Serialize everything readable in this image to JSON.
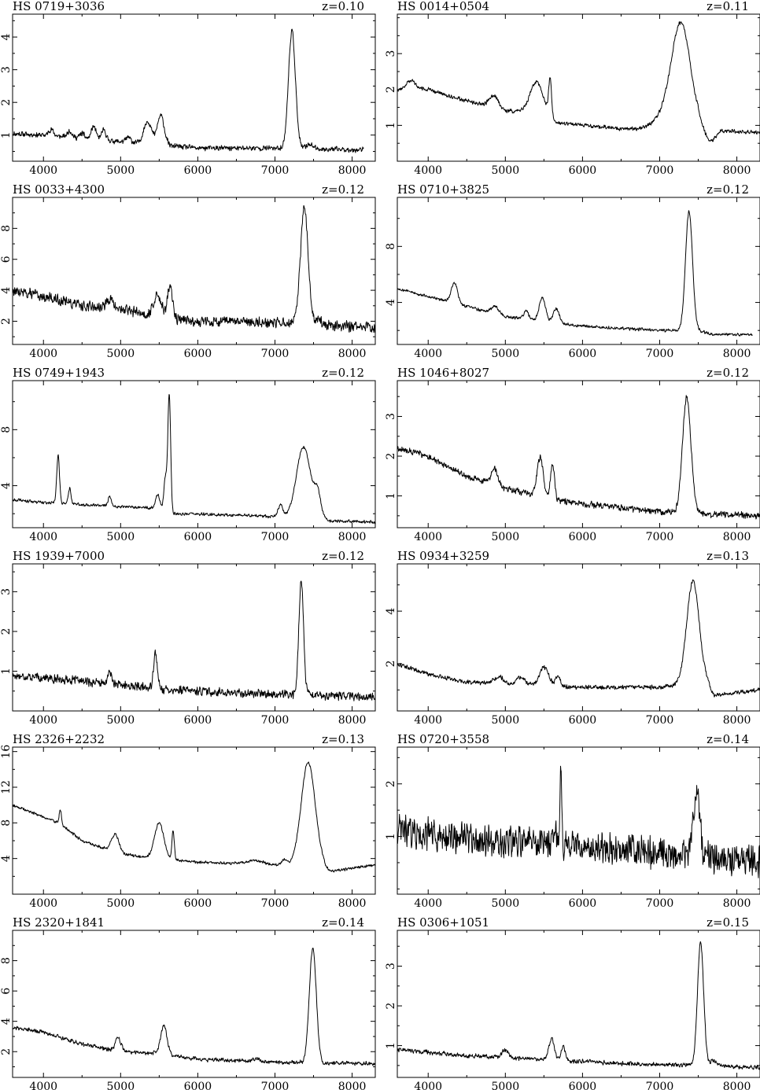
{
  "chart_data": [
    {
      "type": "line",
      "title": "HS 0719+3036",
      "redshift": "z=0.10",
      "xlim": [
        3600,
        8300
      ],
      "ylim": [
        0.2,
        4.7
      ],
      "xticks": [
        4000,
        5000,
        6000,
        7000,
        8000
      ],
      "yticks": [
        1,
        2,
        3,
        4
      ],
      "x_end": 8150,
      "continuum": [
        [
          3600,
          1.05
        ],
        [
          4000,
          1.0
        ],
        [
          5000,
          0.8
        ],
        [
          6000,
          0.6
        ],
        [
          7000,
          0.6
        ],
        [
          8150,
          0.55
        ]
      ],
      "lines": [
        [
          4100,
          0.2,
          30
        ],
        [
          4340,
          0.2,
          30
        ],
        [
          4500,
          0.15,
          30
        ],
        [
          4650,
          0.4,
          30
        ],
        [
          4780,
          0.3,
          30
        ],
        [
          5100,
          0.15,
          30
        ],
        [
          5350,
          0.7,
          50
        ],
        [
          5520,
          0.9,
          45
        ],
        [
          7220,
          3.6,
          45
        ],
        [
          7450,
          0.15,
          40
        ]
      ],
      "noise": 0.06,
      "seed": 11
    },
    {
      "type": "line",
      "title": "HS 0014+0504",
      "redshift": "z=0.11",
      "xlim": [
        3600,
        8300
      ],
      "ylim": [
        0.0,
        4.1
      ],
      "xticks": [
        4000,
        5000,
        6000,
        7000,
        8000
      ],
      "yticks": [
        1,
        2,
        3
      ],
      "x_end": 8300,
      "continuum": [
        [
          3600,
          2.0
        ],
        [
          4000,
          2.0
        ],
        [
          4300,
          1.8
        ],
        [
          5000,
          1.4
        ],
        [
          5500,
          1.4
        ],
        [
          5600,
          1.1
        ],
        [
          6500,
          0.9
        ],
        [
          7000,
          0.9
        ],
        [
          7500,
          1.0
        ],
        [
          7650,
          0.5
        ],
        [
          7800,
          0.85
        ],
        [
          8300,
          0.8
        ]
      ],
      "lines": [
        [
          3780,
          0.25,
          60
        ],
        [
          4850,
          0.35,
          60
        ],
        [
          5400,
          0.8,
          80
        ],
        [
          5580,
          1.1,
          20
        ],
        [
          7280,
          2.7,
          120
        ],
        [
          7100,
          0.4,
          150
        ]
      ],
      "noise": 0.04,
      "seed": 12
    },
    {
      "type": "line",
      "title": "HS 0033+4300",
      "redshift": "z=0.12",
      "xlim": [
        3600,
        8300
      ],
      "ylim": [
        0.5,
        10.0
      ],
      "xticks": [
        4000,
        5000,
        6000,
        7000,
        8000
      ],
      "yticks": [
        2,
        4,
        6,
        8
      ],
      "x_end": 8300,
      "continuum": [
        [
          3600,
          4.0
        ],
        [
          4000,
          3.6
        ],
        [
          4500,
          3.0
        ],
        [
          5000,
          2.8
        ],
        [
          5500,
          2.3
        ],
        [
          6000,
          2.0
        ],
        [
          7000,
          1.9
        ],
        [
          8300,
          1.6
        ]
      ],
      "lines": [
        [
          4860,
          0.6,
          40
        ],
        [
          5480,
          1.4,
          50
        ],
        [
          5640,
          2.1,
          30
        ],
        [
          7380,
          7.4,
          50
        ],
        [
          7560,
          0.4,
          40
        ]
      ],
      "noise": 0.25,
      "seed": 13
    },
    {
      "type": "line",
      "title": "HS 0710+3825",
      "redshift": "z=0.12",
      "xlim": [
        3600,
        8300
      ],
      "ylim": [
        1.0,
        11.5
      ],
      "xticks": [
        4000,
        5000,
        6000,
        7000,
        8000
      ],
      "yticks": [
        4,
        8
      ],
      "x_end": 8200,
      "continuum": [
        [
          3600,
          5.0
        ],
        [
          4300,
          4.0
        ],
        [
          5000,
          3.0
        ],
        [
          6000,
          2.3
        ],
        [
          7000,
          2.0
        ],
        [
          7500,
          2.0
        ],
        [
          7700,
          1.7
        ],
        [
          8200,
          1.7
        ]
      ],
      "lines": [
        [
          4340,
          1.5,
          40
        ],
        [
          4870,
          0.5,
          50
        ],
        [
          5270,
          0.6,
          30
        ],
        [
          5480,
          1.7,
          40
        ],
        [
          5660,
          1.0,
          40
        ],
        [
          7380,
          8.5,
          45
        ]
      ],
      "noise": 0.08,
      "seed": 14
    },
    {
      "type": "line",
      "title": "HS 0749+1943",
      "redshift": "z=0.12",
      "xlim": [
        3600,
        8300
      ],
      "ylim": [
        1.0,
        11.5
      ],
      "xticks": [
        4000,
        5000,
        6000,
        7000,
        8000
      ],
      "yticks": [
        4,
        8
      ],
      "x_end": 8300,
      "continuum": [
        [
          3600,
          3.0
        ],
        [
          4000,
          2.8
        ],
        [
          5000,
          2.5
        ],
        [
          5500,
          2.4
        ],
        [
          5700,
          2.0
        ],
        [
          6500,
          1.9
        ],
        [
          7000,
          1.8
        ],
        [
          7600,
          1.8
        ],
        [
          7700,
          1.5
        ],
        [
          8300,
          1.4
        ]
      ],
      "lines": [
        [
          4190,
          3.4,
          18
        ],
        [
          4340,
          1.1,
          18
        ],
        [
          4860,
          0.7,
          22
        ],
        [
          5480,
          1.0,
          25
        ],
        [
          5580,
          2.3,
          20
        ],
        [
          5630,
          8.3,
          18
        ],
        [
          7070,
          0.8,
          30
        ],
        [
          7370,
          5.0,
          90
        ],
        [
          7550,
          1.5,
          40
        ]
      ],
      "noise": 0.08,
      "seed": 15
    },
    {
      "type": "line",
      "title": "HS 1046+8027",
      "redshift": "z=0.12",
      "xlim": [
        3600,
        8300
      ],
      "ylim": [
        0.2,
        3.9
      ],
      "xticks": [
        4000,
        5000,
        6000,
        7000,
        8000
      ],
      "yticks": [
        1,
        2,
        3
      ],
      "x_end": 8300,
      "continuum": [
        [
          3600,
          2.2
        ],
        [
          4000,
          2.0
        ],
        [
          4500,
          1.5
        ],
        [
          5000,
          1.2
        ],
        [
          5500,
          0.95
        ],
        [
          6000,
          0.8
        ],
        [
          7000,
          0.6
        ],
        [
          7500,
          0.55
        ],
        [
          8300,
          0.5
        ]
      ],
      "lines": [
        [
          4860,
          0.4,
          40
        ],
        [
          5450,
          1.0,
          40
        ],
        [
          5610,
          0.9,
          25
        ],
        [
          7350,
          2.9,
          55
        ]
      ],
      "noise": 0.06,
      "seed": 16
    },
    {
      "type": "line",
      "title": "HS 1939+7000",
      "redshift": "z=0.12",
      "xlim": [
        3600,
        8300
      ],
      "ylim": [
        0.0,
        3.7
      ],
      "xticks": [
        4000,
        5000,
        6000,
        7000,
        8000
      ],
      "yticks": [
        1,
        2,
        3
      ],
      "x_end": 8300,
      "continuum": [
        [
          3600,
          0.9
        ],
        [
          4500,
          0.75
        ],
        [
          5500,
          0.55
        ],
        [
          6500,
          0.45
        ],
        [
          7500,
          0.4
        ],
        [
          8300,
          0.35
        ]
      ],
      "lines": [
        [
          4860,
          0.3,
          25
        ],
        [
          5450,
          0.9,
          25
        ],
        [
          7340,
          2.9,
          30
        ]
      ],
      "noise": 0.08,
      "seed": 17
    },
    {
      "type": "line",
      "title": "HS 0934+3259",
      "redshift": "z=0.13",
      "xlim": [
        3600,
        8300
      ],
      "ylim": [
        0.2,
        5.8
      ],
      "xticks": [
        4000,
        5000,
        6000,
        7000,
        8000
      ],
      "yticks": [
        2,
        4
      ],
      "x_end": 8300,
      "continuum": [
        [
          3600,
          2.0
        ],
        [
          4000,
          1.6
        ],
        [
          4500,
          1.3
        ],
        [
          5000,
          1.2
        ],
        [
          6000,
          1.1
        ],
        [
          7000,
          1.1
        ],
        [
          7600,
          1.3
        ],
        [
          7700,
          0.8
        ],
        [
          8300,
          1.0
        ]
      ],
      "lines": [
        [
          4920,
          0.3,
          60
        ],
        [
          5200,
          0.3,
          60
        ],
        [
          5500,
          0.7,
          60
        ],
        [
          5680,
          0.4,
          30
        ],
        [
          7430,
          3.9,
          80
        ]
      ],
      "noise": 0.06,
      "seed": 18
    },
    {
      "type": "line",
      "title": "HS 2326+2232",
      "redshift": "z=0.13",
      "xlim": [
        3600,
        8300
      ],
      "ylim": [
        0.0,
        16.5
      ],
      "xticks": [
        4000,
        5000,
        6000,
        7000,
        8000
      ],
      "yticks": [
        4,
        8,
        12,
        16
      ],
      "x_end": 8300,
      "continuum": [
        [
          3600,
          10.0
        ],
        [
          4200,
          8.0
        ],
        [
          4500,
          6.0
        ],
        [
          5000,
          4.5
        ],
        [
          5500,
          4.0
        ],
        [
          6000,
          3.6
        ],
        [
          7000,
          3.3
        ],
        [
          7600,
          3.3
        ],
        [
          7700,
          2.5
        ],
        [
          8300,
          3.3
        ]
      ],
      "lines": [
        [
          4220,
          1.5,
          15
        ],
        [
          4930,
          2.0,
          50
        ],
        [
          5500,
          4.0,
          60
        ],
        [
          5680,
          3.2,
          15
        ],
        [
          6750,
          0.4,
          100
        ],
        [
          7120,
          0.6,
          30
        ],
        [
          7430,
          11.5,
          90
        ]
      ],
      "noise": 0.12,
      "seed": 19
    },
    {
      "type": "line",
      "title": "HS 0720+3558",
      "redshift": "z=0.14",
      "xlim": [
        3600,
        8300
      ],
      "ylim": [
        -0.1,
        2.7
      ],
      "xticks": [
        4000,
        5000,
        6000,
        7000,
        8000
      ],
      "yticks": [
        1,
        2
      ],
      "x_end": 8300,
      "continuum": [
        [
          3600,
          1.1
        ],
        [
          4500,
          0.95
        ],
        [
          5500,
          0.85
        ],
        [
          6500,
          0.75
        ],
        [
          7500,
          0.65
        ],
        [
          8300,
          0.5
        ]
      ],
      "lines": [
        [
          5720,
          1.6,
          12
        ],
        [
          7480,
          1.2,
          40
        ],
        [
          5640,
          0.4,
          20
        ]
      ],
      "noise": 0.22,
      "seed": 20
    },
    {
      "type": "line",
      "title": "HS 2320+1841",
      "redshift": "z=0.14",
      "xlim": [
        3600,
        8300
      ],
      "ylim": [
        0.3,
        10.0
      ],
      "xticks": [
        4000,
        5000,
        6000,
        7000,
        8000
      ],
      "yticks": [
        2,
        4,
        6,
        8
      ],
      "x_end": 8300,
      "continuum": [
        [
          3600,
          3.6
        ],
        [
          4000,
          3.3
        ],
        [
          4500,
          2.5
        ],
        [
          5000,
          2.0
        ],
        [
          5500,
          1.9
        ],
        [
          6000,
          1.5
        ],
        [
          7000,
          1.3
        ],
        [
          8300,
          1.2
        ]
      ],
      "lines": [
        [
          4970,
          0.9,
          35
        ],
        [
          5560,
          1.9,
          40
        ],
        [
          6750,
          0.2,
          40
        ],
        [
          7490,
          7.6,
          45
        ]
      ],
      "noise": 0.1,
      "seed": 21
    },
    {
      "type": "line",
      "title": "HS 0306+1051",
      "redshift": "z=0.15",
      "xlim": [
        3600,
        8300
      ],
      "ylim": [
        0.2,
        3.9
      ],
      "xticks": [
        4000,
        5000,
        6000,
        7000,
        8000
      ],
      "yticks": [
        1,
        2,
        3
      ],
      "x_end": 8300,
      "continuum": [
        [
          3600,
          0.9
        ],
        [
          4500,
          0.75
        ],
        [
          5500,
          0.65
        ],
        [
          6500,
          0.55
        ],
        [
          7500,
          0.5
        ],
        [
          8300,
          0.45
        ]
      ],
      "lines": [
        [
          5000,
          0.2,
          40
        ],
        [
          5600,
          0.55,
          35
        ],
        [
          5750,
          0.35,
          25
        ],
        [
          7530,
          3.1,
          40
        ],
        [
          7700,
          0.15,
          40
        ]
      ],
      "noise": 0.04,
      "seed": 22
    }
  ]
}
